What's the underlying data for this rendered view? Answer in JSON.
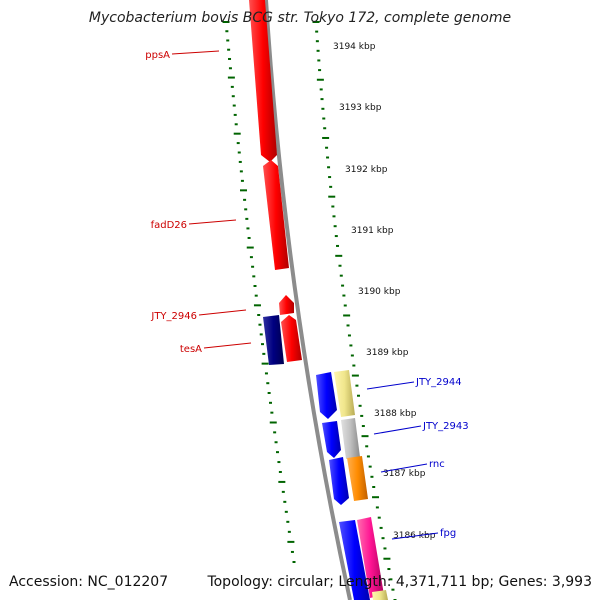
{
  "title": "Mycobacterium bovis BCG str. Tokyo 172, complete genome",
  "accession": "Accession: NC_012207",
  "summary": "Topology: circular; Length: 4,371,711 bp; Genes: 3,993",
  "kbp_ticks": [
    "3194 kbp",
    "3193 kbp",
    "3192 kbp",
    "3191 kbp",
    "3190 kbp",
    "3189 kbp",
    "3188 kbp",
    "3187 kbp",
    "3186 kbp"
  ],
  "gene_labels": [
    {
      "text": "ppsA",
      "color": "#cc0000"
    },
    {
      "text": "fadD26",
      "color": "#cc0000"
    },
    {
      "text": "JTY_2946",
      "color": "#cc0000"
    },
    {
      "text": "tesA",
      "color": "#cc0000"
    },
    {
      "text": "JTY_2944",
      "color": "#0000cc"
    },
    {
      "text": "JTY_2943",
      "color": "#0000cc"
    },
    {
      "text": "rnc",
      "color": "#0000cc"
    },
    {
      "text": "fpg",
      "color": "#0000cc"
    }
  ],
  "colors": {
    "backbone": "#8c8c8c",
    "dotted_ruler": "#006400",
    "red_gene": "#ff0000",
    "navy_gene": "#000080",
    "blue_gene": "#0000ff",
    "khaki_gene": "#f0e68c",
    "gray_gene": "#c0c0c0",
    "orange_gene": "#ff8c00",
    "pink_gene": "#ff1493"
  }
}
